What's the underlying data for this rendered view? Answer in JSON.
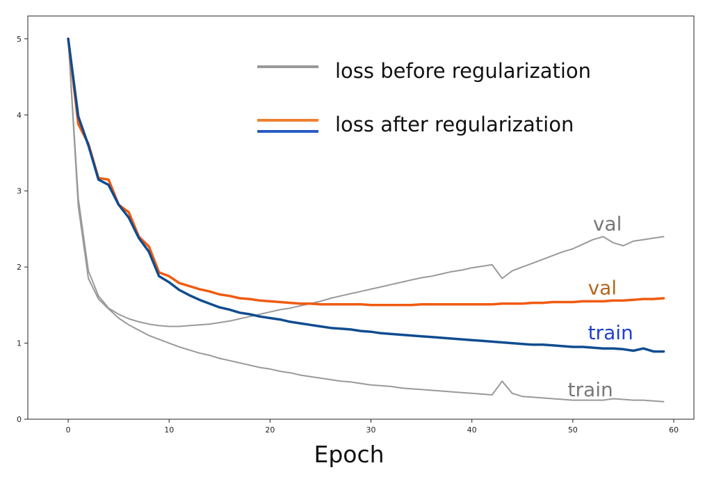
{
  "chart_data": {
    "type": "line",
    "title": "",
    "xlabel": "Epoch",
    "ylabel": "",
    "xlim": [
      -4,
      62
    ],
    "ylim": [
      0,
      5.3
    ],
    "xticks": [
      0,
      10,
      20,
      30,
      40,
      50,
      60
    ],
    "yticks": [
      0,
      1,
      2,
      3,
      4,
      5
    ],
    "grid": false,
    "legend": {
      "placement": "top-right",
      "entries": [
        {
          "label": "loss before regularization",
          "colors": [
            "#999999"
          ]
        },
        {
          "label": "loss after regularization",
          "colors": [
            "#f08030",
            "#2a5bc2"
          ]
        }
      ]
    },
    "annotations": [
      {
        "text": "val",
        "color": "#777777",
        "x": 52,
        "y": 2.48,
        "size": 28
      },
      {
        "text": "val",
        "color": "#b5651d",
        "x": 51.5,
        "y": 1.64,
        "size": 28
      },
      {
        "text": "train",
        "color": "#1f3fcf",
        "x": 51.5,
        "y": 1.05,
        "size": 28
      },
      {
        "text": "train",
        "color": "#777777",
        "x": 49.5,
        "y": 0.3,
        "size": 28
      }
    ],
    "series": [
      {
        "name": "val (before regularization)",
        "color": "#999999",
        "width": 2,
        "x": [
          0,
          1,
          2,
          3,
          4,
          5,
          6,
          7,
          8,
          9,
          10,
          11,
          12,
          13,
          14,
          15,
          16,
          17,
          18,
          19,
          20,
          21,
          22,
          23,
          24,
          25,
          26,
          27,
          28,
          29,
          30,
          31,
          32,
          33,
          34,
          35,
          36,
          37,
          38,
          39,
          40,
          41,
          42,
          43,
          44,
          45,
          46,
          47,
          48,
          49,
          50,
          51,
          52,
          53,
          54,
          55,
          56,
          57,
          58,
          59
        ],
        "values": [
          5.0,
          2.9,
          1.95,
          1.62,
          1.46,
          1.38,
          1.32,
          1.28,
          1.25,
          1.23,
          1.22,
          1.22,
          1.23,
          1.24,
          1.25,
          1.27,
          1.29,
          1.32,
          1.35,
          1.38,
          1.41,
          1.44,
          1.46,
          1.49,
          1.52,
          1.55,
          1.59,
          1.62,
          1.65,
          1.68,
          1.71,
          1.74,
          1.77,
          1.8,
          1.83,
          1.86,
          1.88,
          1.91,
          1.94,
          1.96,
          1.99,
          2.01,
          2.03,
          1.85,
          1.95,
          2.0,
          2.05,
          2.1,
          2.15,
          2.2,
          2.24,
          2.3,
          2.36,
          2.4,
          2.32,
          2.28,
          2.34,
          2.36,
          2.38,
          2.4
        ]
      },
      {
        "name": "train (before regularization)",
        "color": "#999999",
        "width": 2,
        "x": [
          0,
          1,
          2,
          3,
          4,
          5,
          6,
          7,
          8,
          9,
          10,
          11,
          12,
          13,
          14,
          15,
          16,
          17,
          18,
          19,
          20,
          21,
          22,
          23,
          24,
          25,
          26,
          27,
          28,
          29,
          30,
          31,
          32,
          33,
          34,
          35,
          36,
          37,
          38,
          39,
          40,
          41,
          42,
          43,
          44,
          45,
          46,
          47,
          48,
          49,
          50,
          51,
          52,
          53,
          54,
          55,
          56,
          57,
          58,
          59
        ],
        "values": [
          5.0,
          2.8,
          1.85,
          1.58,
          1.45,
          1.33,
          1.24,
          1.17,
          1.1,
          1.05,
          1.0,
          0.95,
          0.91,
          0.87,
          0.84,
          0.8,
          0.77,
          0.74,
          0.71,
          0.68,
          0.66,
          0.63,
          0.61,
          0.58,
          0.56,
          0.54,
          0.52,
          0.5,
          0.49,
          0.47,
          0.45,
          0.44,
          0.43,
          0.41,
          0.4,
          0.39,
          0.38,
          0.37,
          0.36,
          0.35,
          0.34,
          0.33,
          0.32,
          0.5,
          0.34,
          0.3,
          0.29,
          0.28,
          0.27,
          0.26,
          0.25,
          0.25,
          0.25,
          0.25,
          0.27,
          0.26,
          0.25,
          0.25,
          0.24,
          0.23
        ]
      },
      {
        "name": "val (after regularization)",
        "color": "#f05a10",
        "width": 3.5,
        "x": [
          0,
          1,
          2,
          3,
          4,
          5,
          6,
          7,
          8,
          9,
          10,
          11,
          12,
          13,
          14,
          15,
          16,
          17,
          18,
          19,
          20,
          21,
          22,
          23,
          24,
          25,
          26,
          27,
          28,
          29,
          30,
          31,
          32,
          33,
          34,
          35,
          36,
          37,
          38,
          39,
          40,
          41,
          42,
          43,
          44,
          45,
          46,
          47,
          48,
          49,
          50,
          51,
          52,
          53,
          54,
          55,
          56,
          57,
          58,
          59
        ],
        "values": [
          5.0,
          3.88,
          3.62,
          3.17,
          3.15,
          2.82,
          2.72,
          2.4,
          2.27,
          1.93,
          1.88,
          1.79,
          1.75,
          1.71,
          1.68,
          1.64,
          1.62,
          1.59,
          1.58,
          1.56,
          1.55,
          1.54,
          1.53,
          1.52,
          1.52,
          1.51,
          1.51,
          1.51,
          1.51,
          1.51,
          1.5,
          1.5,
          1.5,
          1.5,
          1.5,
          1.51,
          1.51,
          1.51,
          1.51,
          1.51,
          1.51,
          1.51,
          1.51,
          1.52,
          1.52,
          1.52,
          1.53,
          1.53,
          1.54,
          1.54,
          1.54,
          1.55,
          1.55,
          1.55,
          1.56,
          1.56,
          1.57,
          1.58,
          1.58,
          1.59
        ]
      },
      {
        "name": "train (after regularization)",
        "color": "#0f4c8f",
        "width": 3.5,
        "x": [
          0,
          1,
          2,
          3,
          4,
          5,
          6,
          7,
          8,
          9,
          10,
          11,
          12,
          13,
          14,
          15,
          16,
          17,
          18,
          19,
          20,
          21,
          22,
          23,
          24,
          25,
          26,
          27,
          28,
          29,
          30,
          31,
          32,
          33,
          34,
          35,
          36,
          37,
          38,
          39,
          40,
          41,
          42,
          43,
          44,
          45,
          46,
          47,
          48,
          49,
          50,
          51,
          52,
          53,
          54,
          55,
          56,
          57,
          58,
          59
        ],
        "values": [
          5.0,
          3.98,
          3.6,
          3.15,
          3.08,
          2.82,
          2.65,
          2.38,
          2.2,
          1.88,
          1.8,
          1.7,
          1.63,
          1.57,
          1.52,
          1.47,
          1.44,
          1.4,
          1.38,
          1.35,
          1.33,
          1.31,
          1.28,
          1.26,
          1.24,
          1.22,
          1.2,
          1.19,
          1.18,
          1.16,
          1.15,
          1.13,
          1.12,
          1.11,
          1.1,
          1.09,
          1.08,
          1.07,
          1.06,
          1.05,
          1.04,
          1.03,
          1.02,
          1.01,
          1.0,
          0.99,
          0.98,
          0.98,
          0.97,
          0.96,
          0.95,
          0.95,
          0.94,
          0.93,
          0.93,
          0.92,
          0.9,
          0.93,
          0.89,
          0.89
        ]
      }
    ]
  }
}
